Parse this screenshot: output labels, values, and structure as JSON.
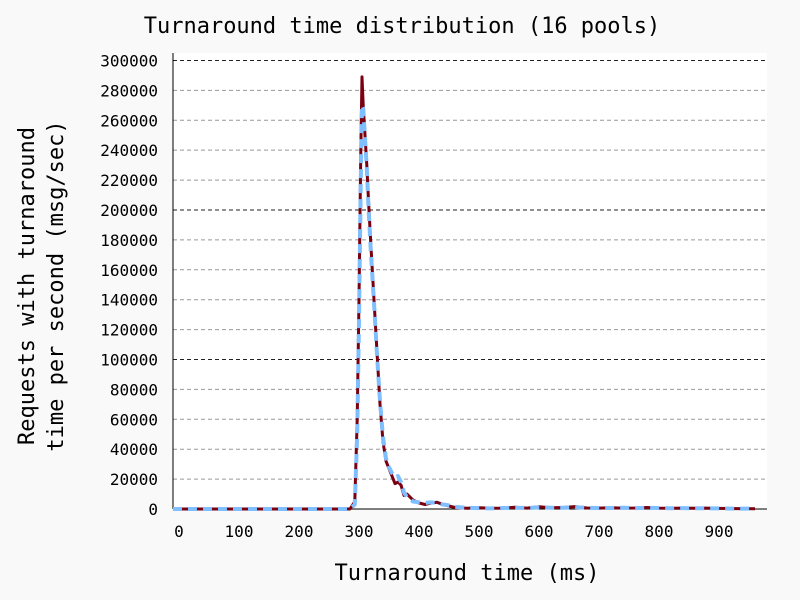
{
  "chart_data": {
    "type": "line",
    "title": "Turnaround time distribution (16 pools)",
    "xlabel": "Turnaround time (ms)",
    "ylabel_lines": [
      "Requests with turnaround",
      "time per second (msg/sec)"
    ],
    "xlim": [
      -10,
      980
    ],
    "ylim": [
      0,
      305000
    ],
    "xticks": [
      0,
      100,
      200,
      300,
      400,
      500,
      600,
      700,
      800,
      900
    ],
    "yticks": [
      0,
      20000,
      40000,
      60000,
      80000,
      100000,
      120000,
      140000,
      160000,
      180000,
      200000,
      220000,
      240000,
      260000,
      280000,
      300000
    ],
    "major_grid_y": [
      100000,
      200000,
      300000
    ],
    "grid": true,
    "colors": {
      "background": "#f9f9f9",
      "plot_area": "#ffffff",
      "series_a": "#7a0010",
      "series_b": "#7fbfff",
      "grid_minor": "#999999",
      "grid_major": "#222222"
    },
    "series": [
      {
        "style": "solid-dark",
        "x": [
          -10,
          0,
          100,
          200,
          270,
          285,
          293,
          297,
          300,
          303,
          305,
          307,
          310,
          313,
          316,
          320,
          325,
          330,
          335,
          340,
          345,
          350,
          355,
          360,
          365,
          370,
          375,
          380,
          390,
          400,
          410,
          420,
          430,
          440,
          450,
          460,
          480,
          500,
          520,
          540,
          560,
          580,
          600,
          620,
          640,
          660,
          680,
          700,
          720,
          740,
          760,
          780,
          800,
          820,
          840,
          860,
          880,
          900,
          930,
          960
        ],
        "y": [
          0,
          0,
          0,
          0,
          0,
          0,
          5000,
          60000,
          140000,
          240000,
          289000,
          270000,
          250000,
          230000,
          205000,
          175000,
          140000,
          105000,
          70000,
          45000,
          32000,
          27000,
          22000,
          17000,
          18000,
          16000,
          9000,
          10000,
          6000,
          4000,
          3000,
          4000,
          4500,
          3000,
          2000,
          1000,
          500,
          800,
          500,
          600,
          1200,
          600,
          1500,
          800,
          1000,
          1600,
          700,
          600,
          800,
          600,
          700,
          1000,
          600,
          500,
          600,
          500,
          600,
          400,
          300,
          200
        ]
      },
      {
        "style": "dashed-light",
        "x": [
          -10,
          0,
          100,
          200,
          270,
          285,
          293,
          297,
          300,
          303,
          305,
          307,
          310,
          313,
          316,
          320,
          325,
          330,
          335,
          340,
          345,
          350,
          355,
          360,
          365,
          370,
          375,
          380,
          390,
          400,
          410,
          420,
          430,
          440,
          450,
          460,
          480,
          500,
          520,
          540,
          560,
          580,
          600,
          620,
          640,
          660,
          680,
          700,
          720,
          740,
          760,
          780,
          800,
          820,
          840,
          860,
          880,
          900,
          930,
          960
        ],
        "y": [
          0,
          0,
          0,
          0,
          0,
          0,
          3000,
          50000,
          125000,
          220000,
          270000,
          268000,
          248000,
          228000,
          200000,
          170000,
          138000,
          103000,
          72000,
          48000,
          34000,
          28000,
          24000,
          21000,
          22000,
          18000,
          11000,
          8000,
          5000,
          4500,
          4000,
          4500,
          4000,
          3000,
          2500,
          1500,
          800,
          600,
          400,
          700,
          900,
          700,
          1100,
          900,
          800,
          1200,
          800,
          700,
          700,
          900,
          600,
          800,
          700,
          500,
          600,
          500,
          500,
          400,
          300,
          200
        ]
      }
    ]
  }
}
